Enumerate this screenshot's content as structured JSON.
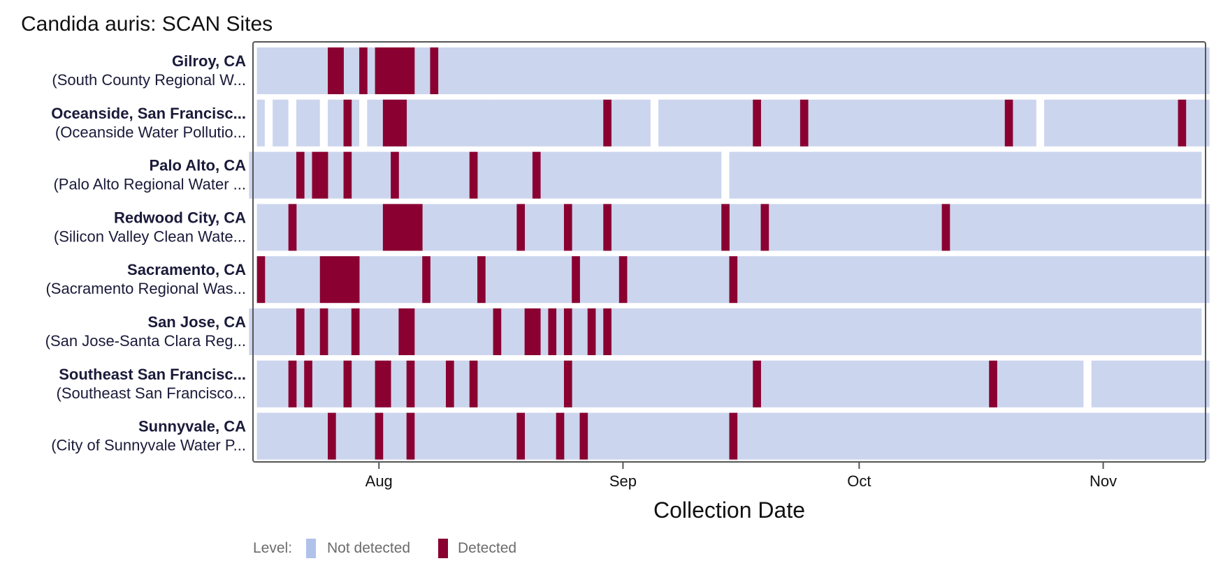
{
  "title": "Candida auris: SCAN Sites",
  "colors": {
    "not_detected": "#ccd5ee",
    "detected": "#8a0031",
    "legend_not_detected": "#b0c2ea",
    "frame": "#555555"
  },
  "chart_data": {
    "type": "heatmap",
    "title": "Candida auris: SCAN Sites",
    "xlabel": "Collection Date",
    "ylabel": "",
    "x_range": [
      "2025-07-16",
      "2025-11-14"
    ],
    "x_ticks": [
      {
        "date": "2025-08-01",
        "label": "Aug"
      },
      {
        "date": "2025-09-01",
        "label": "Sep"
      },
      {
        "date": "2025-10-01",
        "label": "Oct"
      },
      {
        "date": "2025-11-01",
        "label": "Nov"
      }
    ],
    "legend": {
      "title": "Level:",
      "placement": "bottom-left",
      "items": [
        {
          "label": "Not detected",
          "key": "not_detected"
        },
        {
          "label": "Detected",
          "key": "detected"
        }
      ]
    },
    "rows": [
      {
        "name": "Gilroy, CA",
        "plant": "(South County Regional W...",
        "not_detected": [
          [
            "2025-07-17",
            "2025-11-14"
          ]
        ],
        "detected": [
          "2025-07-26",
          "2025-07-27",
          "2025-07-30",
          "2025-08-01",
          "2025-08-02",
          "2025-08-03",
          "2025-08-04",
          "2025-08-05",
          "2025-08-08"
        ]
      },
      {
        "name": "Oceanside, San Francisc...",
        "plant": "(Oceanside Water Pollutio...",
        "not_detected": [
          [
            "2025-07-17",
            "2025-07-17"
          ],
          [
            "2025-07-19",
            "2025-07-20"
          ],
          [
            "2025-07-22",
            "2025-07-24"
          ],
          [
            "2025-07-26",
            "2025-07-29"
          ],
          [
            "2025-07-31",
            "2025-08-15"
          ],
          [
            "2025-08-16",
            "2025-09-04"
          ],
          [
            "2025-09-06",
            "2025-10-23"
          ],
          [
            "2025-10-25",
            "2025-11-14"
          ]
        ],
        "detected": [
          "2025-07-28",
          "2025-08-02",
          "2025-08-03",
          "2025-08-04",
          "2025-08-30",
          "2025-09-18",
          "2025-09-24",
          "2025-10-20",
          "2025-11-11"
        ]
      },
      {
        "name": "Palo Alto, CA",
        "plant": "(Palo Alto Regional Water ...",
        "not_detected": [
          [
            "2025-07-16",
            "2025-09-13"
          ],
          [
            "2025-09-15",
            "2025-11-13"
          ]
        ],
        "detected": [
          "2025-07-22",
          "2025-07-24",
          "2025-07-25",
          "2025-07-28",
          "2025-08-03",
          "2025-08-13",
          "2025-08-21"
        ]
      },
      {
        "name": "Redwood City, CA",
        "plant": "(Silicon Valley Clean Wate...",
        "not_detected": [
          [
            "2025-07-17",
            "2025-11-14"
          ]
        ],
        "detected": [
          "2025-07-21",
          "2025-08-02",
          "2025-08-03",
          "2025-08-04",
          "2025-08-05",
          "2025-08-06",
          "2025-08-19",
          "2025-08-25",
          "2025-08-30",
          "2025-09-14",
          "2025-09-19",
          "2025-10-12"
        ]
      },
      {
        "name": "Sacramento, CA",
        "plant": "(Sacramento Regional Was...",
        "not_detected": [
          [
            "2025-07-17",
            "2025-11-14"
          ]
        ],
        "detected": [
          "2025-07-17",
          "2025-07-25",
          "2025-07-26",
          "2025-07-27",
          "2025-07-28",
          "2025-07-29",
          "2025-08-07",
          "2025-08-14",
          "2025-08-26",
          "2025-09-01",
          "2025-09-15"
        ]
      },
      {
        "name": "San Jose, CA",
        "plant": "(San Jose-Santa Clara Reg...",
        "not_detected": [
          [
            "2025-07-16",
            "2025-11-13"
          ]
        ],
        "detected": [
          "2025-07-22",
          "2025-07-25",
          "2025-07-29",
          "2025-08-04",
          "2025-08-05",
          "2025-08-16",
          "2025-08-20",
          "2025-08-21",
          "2025-08-23",
          "2025-08-25",
          "2025-08-28",
          "2025-08-30"
        ]
      },
      {
        "name": "Southeast San Francisc...",
        "plant": "(Southeast San Francisco...",
        "not_detected": [
          [
            "2025-07-17",
            "2025-10-29"
          ],
          [
            "2025-10-31",
            "2025-11-14"
          ]
        ],
        "detected": [
          "2025-07-21",
          "2025-07-23",
          "2025-07-28",
          "2025-08-01",
          "2025-08-02",
          "2025-08-05",
          "2025-08-10",
          "2025-08-13",
          "2025-08-25",
          "2025-09-18",
          "2025-10-18"
        ]
      },
      {
        "name": "Sunnyvale, CA",
        "plant": "(City of Sunnyvale Water P...",
        "not_detected": [
          [
            "2025-07-17",
            "2025-11-14"
          ]
        ],
        "detected": [
          "2025-07-26",
          "2025-08-01",
          "2025-08-05",
          "2025-08-19",
          "2025-08-24",
          "2025-08-27",
          "2025-09-15"
        ]
      }
    ]
  }
}
